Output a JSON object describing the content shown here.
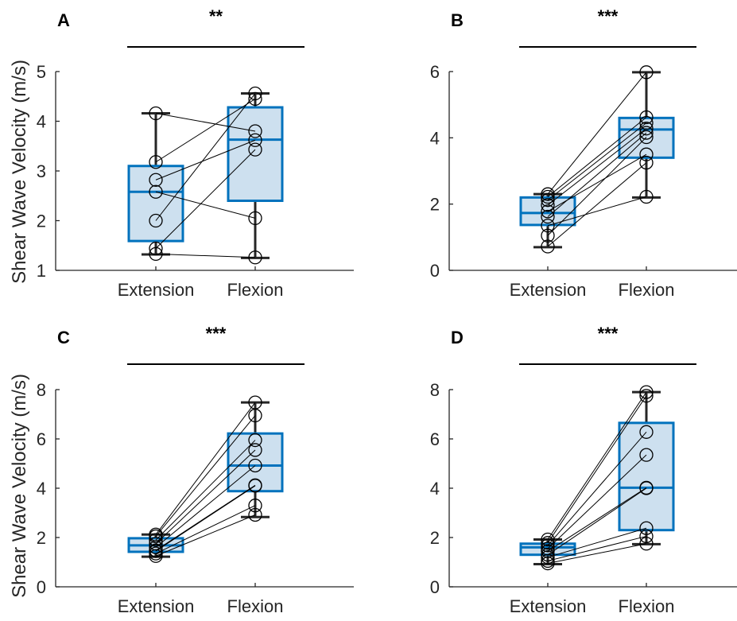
{
  "figure": {
    "ylabel_top": "Shear Wave Velocity (m/s)",
    "ylabel_bottom": "Shear Wave Velocity (m/s)"
  },
  "colors": {
    "box_edge": "#0072BD",
    "box_fill": "#cde0ef",
    "whisker": "#262626",
    "marker": "#000000",
    "axis": "#262626"
  },
  "chart_data": [
    {
      "type": "box",
      "panel": "A",
      "significance": "**",
      "categories": [
        "Extension",
        "Flexion"
      ],
      "ylim": [
        1,
        5
      ],
      "yticks": [
        1,
        2,
        3,
        4,
        5
      ],
      "boxes": [
        {
          "category": "Extension",
          "q1": 1.59,
          "median": 2.58,
          "q3": 3.1,
          "whisker_low": 1.32,
          "whisker_high": 4.16
        },
        {
          "category": "Flexion",
          "q1": 2.4,
          "median": 3.63,
          "q3": 4.28,
          "whisker_low": 1.25,
          "whisker_high": 4.56
        }
      ],
      "pairs": [
        [
          4.16,
          3.8
        ],
        [
          3.18,
          4.45
        ],
        [
          2.82,
          3.62
        ],
        [
          2.58,
          2.05
        ],
        [
          2.0,
          4.56
        ],
        [
          1.44,
          3.43
        ],
        [
          1.33,
          1.26
        ]
      ]
    },
    {
      "type": "box",
      "panel": "B",
      "significance": "***",
      "categories": [
        "Extension",
        "Flexion"
      ],
      "ylim": [
        0,
        6
      ],
      "yticks": [
        0,
        2,
        4,
        6
      ],
      "boxes": [
        {
          "category": "Extension",
          "q1": 1.37,
          "median": 1.73,
          "q3": 2.2,
          "whisker_low": 0.7,
          "whisker_high": 2.3
        },
        {
          "category": "Flexion",
          "q1": 3.4,
          "median": 4.25,
          "q3": 4.6,
          "whisker_low": 2.2,
          "whisker_high": 5.98
        }
      ],
      "pairs": [
        [
          2.3,
          5.98
        ],
        [
          2.22,
          4.62
        ],
        [
          2.12,
          4.45
        ],
        [
          1.97,
          4.28
        ],
        [
          1.78,
          3.5
        ],
        [
          1.62,
          4.15
        ],
        [
          1.35,
          2.22
        ],
        [
          1.05,
          4.02
        ],
        [
          0.72,
          3.25
        ]
      ]
    },
    {
      "type": "box",
      "panel": "C",
      "significance": "***",
      "categories": [
        "Extension",
        "Flexion"
      ],
      "ylim": [
        0,
        8
      ],
      "yticks": [
        0,
        2,
        4,
        6,
        8
      ],
      "boxes": [
        {
          "category": "Extension",
          "q1": 1.42,
          "median": 1.68,
          "q3": 1.97,
          "whisker_low": 1.22,
          "whisker_high": 2.12
        },
        {
          "category": "Flexion",
          "q1": 3.88,
          "median": 4.92,
          "q3": 6.22,
          "whisker_low": 2.83,
          "whisker_high": 7.48
        }
      ],
      "pairs": [
        [
          2.12,
          7.48
        ],
        [
          2.05,
          6.95
        ],
        [
          1.9,
          5.95
        ],
        [
          1.75,
          5.55
        ],
        [
          1.6,
          4.92
        ],
        [
          1.45,
          4.1
        ],
        [
          1.35,
          3.3
        ],
        [
          1.25,
          2.92
        ],
        [
          1.48,
          4.12
        ]
      ]
    },
    {
      "type": "box",
      "panel": "D",
      "significance": "***",
      "categories": [
        "Extension",
        "Flexion"
      ],
      "ylim": [
        0,
        8
      ],
      "yticks": [
        0,
        2,
        4,
        6,
        8
      ],
      "boxes": [
        {
          "category": "Extension",
          "q1": 1.3,
          "median": 1.6,
          "q3": 1.75,
          "whisker_low": 0.92,
          "whisker_high": 1.92
        },
        {
          "category": "Flexion",
          "q1": 2.3,
          "median": 4.02,
          "q3": 6.65,
          "whisker_low": 1.73,
          "whisker_high": 7.9
        }
      ],
      "pairs": [
        [
          1.92,
          7.9
        ],
        [
          1.78,
          7.75
        ],
        [
          1.68,
          6.28
        ],
        [
          1.55,
          5.35
        ],
        [
          1.45,
          4.02
        ],
        [
          1.3,
          4.0
        ],
        [
          1.2,
          2.38
        ],
        [
          1.05,
          2.05
        ],
        [
          0.95,
          1.75
        ]
      ]
    }
  ]
}
